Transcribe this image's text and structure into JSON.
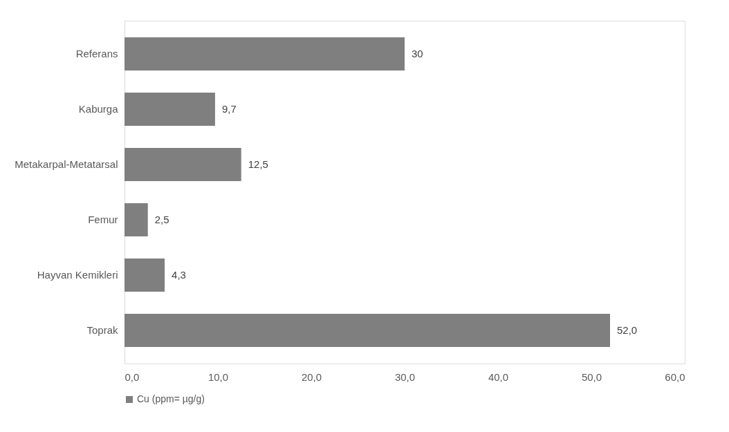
{
  "chart_data": {
    "type": "bar",
    "orientation": "horizontal",
    "categories": [
      "Referans",
      "Kaburga",
      "Metakarpal-Metatarsal",
      "Femur",
      "Hayvan Kemikleri",
      "Toprak"
    ],
    "series": [
      {
        "name": "Cu (ppm= µg/g)",
        "color": "#7f7f7f",
        "values": [
          30,
          9.7,
          12.5,
          2.5,
          4.3,
          52.0
        ],
        "value_labels": [
          "30",
          "9,7",
          "12,5",
          "2,5",
          "4,3",
          "52,0"
        ]
      }
    ],
    "xlim": [
      0,
      60
    ],
    "xticks": [
      {
        "value": 0,
        "label": "0,0"
      },
      {
        "value": 10,
        "label": "10,0"
      },
      {
        "value": 20,
        "label": "20,0"
      },
      {
        "value": 30,
        "label": "30,0"
      },
      {
        "value": 40,
        "label": "40,0"
      },
      {
        "value": 50,
        "label": "50,0"
      },
      {
        "value": 60,
        "label": "60,0"
      }
    ],
    "grid": false,
    "legend": "bottom"
  }
}
